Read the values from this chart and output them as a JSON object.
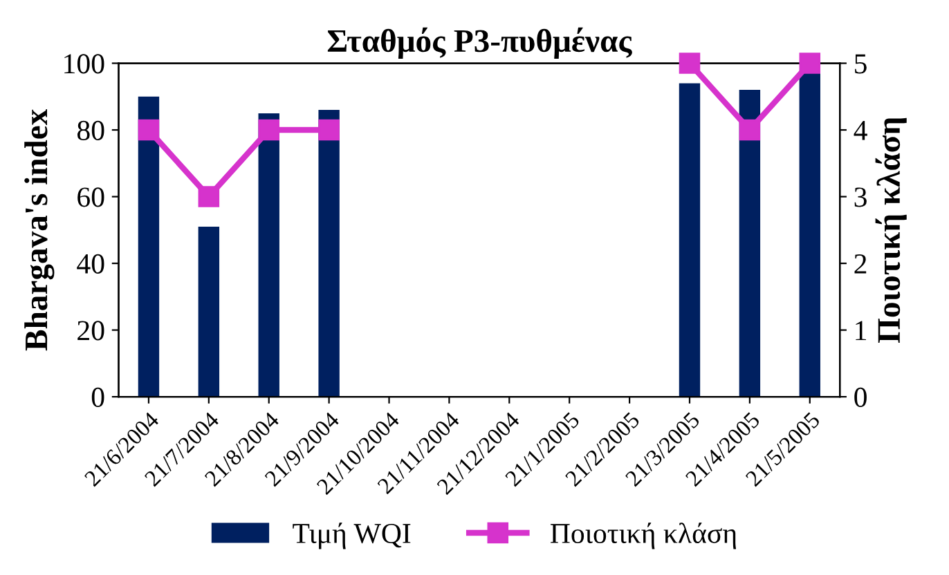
{
  "chart_data": {
    "type": "bar",
    "title": "Σταθμός P3-πυθμένας",
    "ylabel": "Bhargava's index",
    "y2label": "Ποιοτική κλάση",
    "categories": [
      "21/6/2004",
      "21/7/2004",
      "21/8/2004",
      "21/9/2004",
      "21/10/2004",
      "21/11/2004",
      "21/12/2004",
      "21/1/2005",
      "21/2/2005",
      "21/3/2005",
      "21/4/2005",
      "21/5/2005"
    ],
    "series": [
      {
        "name": "Τιμή WQI",
        "color": "#002060",
        "values": [
          90,
          51,
          85,
          86,
          null,
          null,
          null,
          null,
          null,
          94,
          92,
          97
        ]
      },
      {
        "name": "Ποιοτική κλάση",
        "type": "line",
        "axis": "y2",
        "color": "#d633cc",
        "marker": "square",
        "values": [
          4,
          3,
          4,
          4,
          null,
          null,
          null,
          null,
          null,
          5,
          4,
          5
        ]
      }
    ],
    "ylim": [
      0,
      100
    ],
    "yticks": [
      0,
      20,
      40,
      60,
      80,
      100
    ],
    "y2lim": [
      0,
      5
    ],
    "y2ticks": [
      0,
      1,
      2,
      3,
      4,
      5
    ],
    "grid": false,
    "legend": "bottom"
  }
}
